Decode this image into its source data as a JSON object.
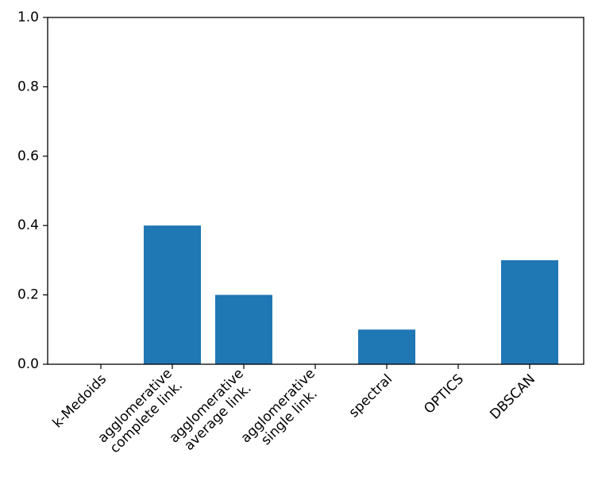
{
  "chart_data": {
    "type": "bar",
    "categories": [
      [
        "k-Medoids"
      ],
      [
        "agglomerative",
        "complete link."
      ],
      [
        "agglomerative",
        "average link."
      ],
      [
        "agglomerative",
        "single link."
      ],
      [
        "spectral"
      ],
      [
        "OPTICS"
      ],
      [
        "DBSCAN"
      ]
    ],
    "values": [
      0.0,
      0.4,
      0.2,
      0.0,
      0.1,
      0.0,
      0.3
    ],
    "ylim": [
      0,
      1.0
    ],
    "yticks": [
      "0.0",
      "0.2",
      "0.4",
      "0.6",
      "0.8",
      "1.0"
    ],
    "bar_color": "#1f77b4",
    "grid": false,
    "title": "",
    "xlabel": "",
    "ylabel": ""
  }
}
